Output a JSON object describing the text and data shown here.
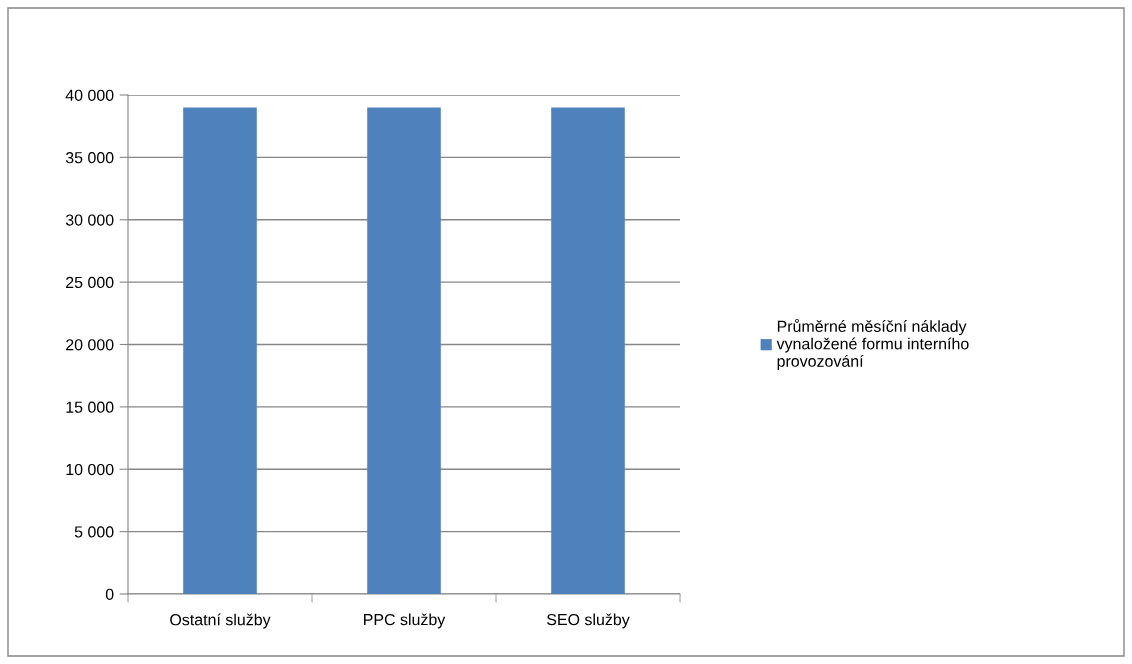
{
  "chart_data": {
    "type": "bar",
    "categories": [
      "Ostatní služby",
      "PPC služby",
      "SEO služby"
    ],
    "series": [
      {
        "name": "Průměrné měsíční náklady vynaložené formu interního provozování",
        "color": "#4f81bd",
        "values": [
          39000,
          39000,
          39000
        ]
      }
    ],
    "ylim": [
      0,
      40000
    ],
    "yticks": [
      0,
      {
        "value": 5000,
        "label": "5 000"
      },
      {
        "value": 10000,
        "label": "10 000"
      },
      {
        "value": 15000,
        "label": "15 000"
      },
      {
        "value": 20000,
        "label": "20 000"
      },
      {
        "value": 25000,
        "label": "25 000"
      },
      {
        "value": 30000,
        "label": "30 000"
      },
      {
        "value": 35000,
        "label": "35 000"
      },
      {
        "value": 40000,
        "label": "40 000"
      }
    ],
    "grid": "y",
    "legend": "right"
  }
}
